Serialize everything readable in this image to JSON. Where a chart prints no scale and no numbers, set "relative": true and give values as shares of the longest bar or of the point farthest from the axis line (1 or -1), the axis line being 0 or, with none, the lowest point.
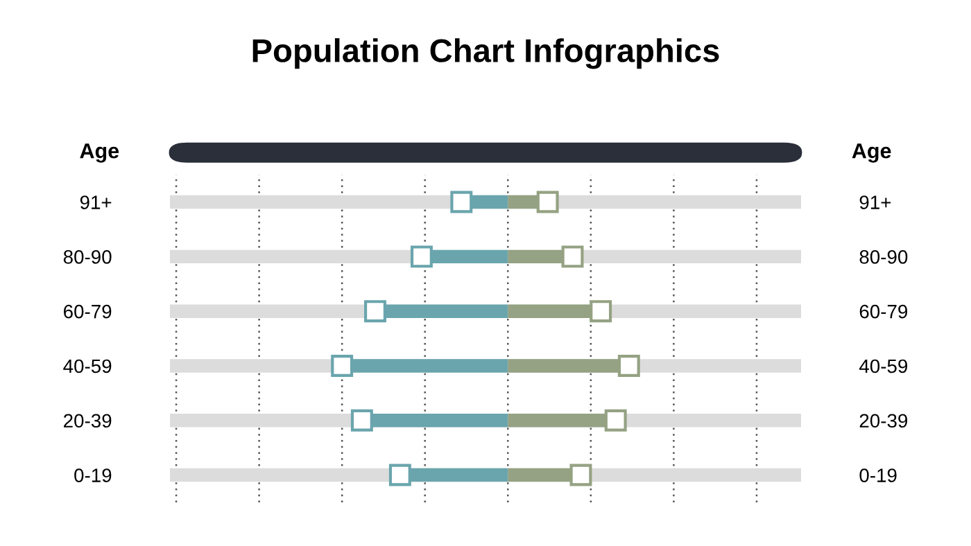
{
  "chart_data": {
    "type": "lollipop",
    "orientation": "horizontal",
    "relative": true,
    "title": "Population Chart Infographics",
    "ylabel": "Age",
    "annotations": [
      "Age"
    ],
    "categories": [
      "91+",
      "80-90",
      "60-79",
      "40-59",
      "20-39",
      "0-19"
    ],
    "series": [
      {
        "color": "#6aa5ad",
        "values": [
          -0.28,
          -0.52,
          -0.8,
          -1,
          -0.88,
          -0.65
        ]
      },
      {
        "color": "#95a283",
        "values": [
          0.24,
          0.39,
          0.56,
          0.73,
          0.65,
          0.44
        ]
      }
    ],
    "marker": "square",
    "grid": true,
    "legend": false
  }
}
